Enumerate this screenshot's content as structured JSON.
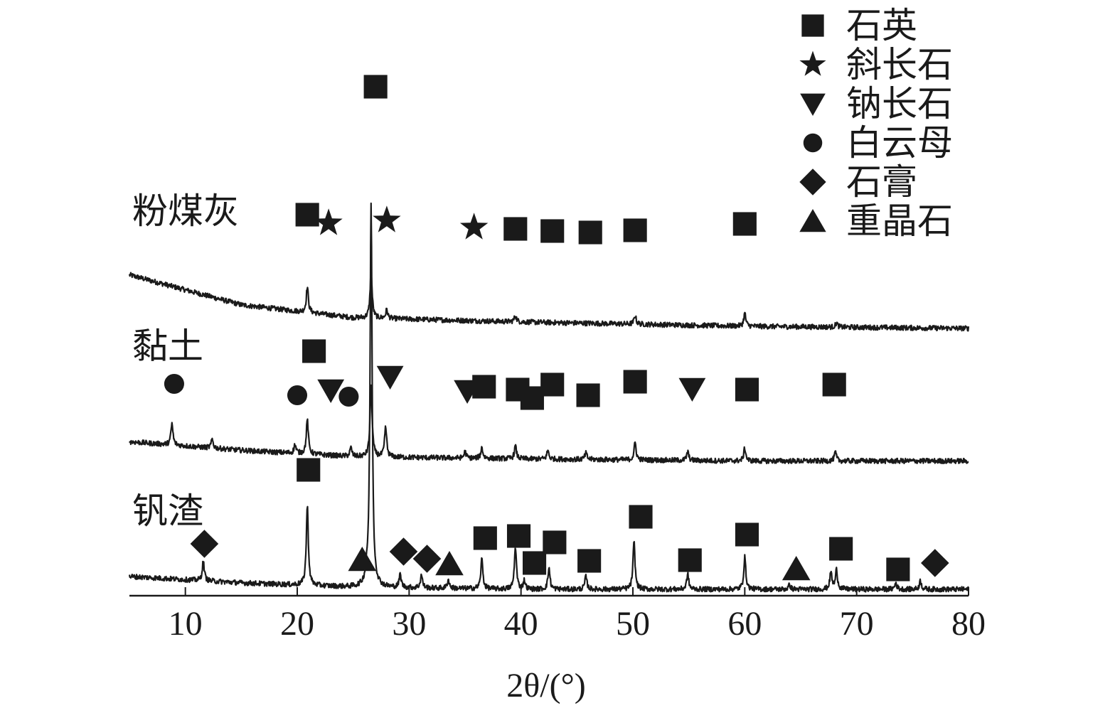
{
  "chart_data": {
    "type": "line",
    "xlabel": "2θ/(°)",
    "xlim": [
      5,
      80
    ],
    "x_ticks": [
      10,
      20,
      30,
      40,
      50,
      60,
      70,
      80
    ],
    "y_ticks_shown": false,
    "grid": false,
    "legend_position": "top-right",
    "phases": [
      {
        "id": "quartz",
        "label": "石英",
        "shape": "square"
      },
      {
        "id": "plagioclase",
        "label": "斜长石",
        "shape": "star"
      },
      {
        "id": "albite",
        "label": "钠长石",
        "shape": "triangle-down"
      },
      {
        "id": "muscovite",
        "label": "白云母",
        "shape": "circle"
      },
      {
        "id": "gypsum",
        "label": "石膏",
        "shape": "diamond"
      },
      {
        "id": "barite",
        "label": "重晶石",
        "shape": "triangle-up"
      }
    ],
    "series": [
      {
        "name": "粉煤灰",
        "baseline": [
          [
            5,
            7.4
          ],
          [
            15,
            6.7
          ],
          [
            25,
            6.4
          ],
          [
            40,
            6.3
          ],
          [
            60,
            6.2
          ],
          [
            80,
            6.15
          ]
        ],
        "peaks": [
          [
            20.9,
            0.6
          ],
          [
            26.6,
            1.1
          ],
          [
            28.0,
            0.2
          ],
          [
            39.5,
            0.15
          ],
          [
            50.2,
            0.2
          ],
          [
            60.0,
            0.3
          ],
          [
            68.2,
            0.1
          ]
        ],
        "annotations": [
          {
            "phase": "quartz",
            "x": 20.9
          },
          {
            "phase": "plagioclase",
            "x": 22.8
          },
          {
            "phase": "plagioclase",
            "x": 28.0
          },
          {
            "phase": "plagioclase",
            "x": 35.8
          },
          {
            "phase": "quartz",
            "x": 39.5
          },
          {
            "phase": "quartz",
            "x": 42.8
          },
          {
            "phase": "quartz",
            "x": 46.2
          },
          {
            "phase": "quartz",
            "x": 50.2
          },
          {
            "phase": "quartz",
            "x": 60.0
          }
        ]
      },
      {
        "name": "黏土",
        "baseline": [
          [
            5,
            3.5
          ],
          [
            15,
            3.3
          ],
          [
            25,
            3.15
          ],
          [
            40,
            3.1
          ],
          [
            60,
            3.05
          ],
          [
            80,
            3.05
          ]
        ],
        "peaks": [
          [
            8.8,
            0.5
          ],
          [
            12.4,
            0.2
          ],
          [
            19.8,
            0.2
          ],
          [
            20.9,
            0.8
          ],
          [
            24.8,
            0.2
          ],
          [
            26.6,
            1.7
          ],
          [
            27.9,
            0.7
          ],
          [
            35.0,
            0.15
          ],
          [
            36.5,
            0.25
          ],
          [
            39.5,
            0.3
          ],
          [
            42.4,
            0.2
          ],
          [
            45.8,
            0.15
          ],
          [
            50.2,
            0.4
          ],
          [
            54.9,
            0.2
          ],
          [
            60.0,
            0.3
          ],
          [
            68.1,
            0.2
          ]
        ],
        "annotations": [
          {
            "phase": "muscovite",
            "x": 9.0
          },
          {
            "phase": "muscovite",
            "x": 20.0
          },
          {
            "phase": "quartz",
            "x": 21.5
          },
          {
            "phase": "albite",
            "x": 23.0
          },
          {
            "phase": "muscovite",
            "x": 24.6
          },
          {
            "phase": "albite",
            "x": 28.3
          },
          {
            "phase": "albite",
            "x": 35.2
          },
          {
            "phase": "quartz",
            "x": 36.7
          },
          {
            "phase": "quartz",
            "x": 39.7
          },
          {
            "phase": "quartz",
            "x": 41.0
          },
          {
            "phase": "quartz",
            "x": 42.8
          },
          {
            "phase": "quartz",
            "x": 46.0
          },
          {
            "phase": "quartz",
            "x": 50.2
          },
          {
            "phase": "albite",
            "x": 55.3
          },
          {
            "phase": "quartz",
            "x": 60.2
          },
          {
            "phase": "quartz",
            "x": 68.0
          }
        ]
      },
      {
        "name": "钒渣",
        "baseline": [
          [
            5,
            0.35
          ],
          [
            15,
            0.2
          ],
          [
            25,
            0.1
          ],
          [
            40,
            0.05
          ],
          [
            60,
            0.05
          ],
          [
            80,
            0.05
          ]
        ],
        "peaks": [
          [
            11.6,
            0.45
          ],
          [
            20.9,
            1.85
          ],
          [
            26.2,
            0.2
          ],
          [
            26.6,
            9.0
          ],
          [
            29.2,
            0.3
          ],
          [
            31.1,
            0.3
          ],
          [
            33.5,
            0.2
          ],
          [
            36.5,
            0.7
          ],
          [
            39.5,
            1.0
          ],
          [
            40.3,
            0.2
          ],
          [
            42.5,
            0.5
          ],
          [
            45.8,
            0.3
          ],
          [
            50.1,
            1.1
          ],
          [
            54.9,
            0.35
          ],
          [
            60.0,
            0.75
          ],
          [
            64.0,
            0.1
          ],
          [
            67.7,
            0.4
          ],
          [
            68.2,
            0.45
          ],
          [
            73.5,
            0.15
          ],
          [
            75.7,
            0.2
          ]
        ],
        "annotations": [
          {
            "phase": "gypsum",
            "x": 11.7
          },
          {
            "phase": "quartz",
            "x": 21.0
          },
          {
            "phase": "barite",
            "x": 25.8
          },
          {
            "phase": "quartz",
            "x": 27.0
          },
          {
            "phase": "gypsum",
            "x": 29.5
          },
          {
            "phase": "gypsum",
            "x": 31.6
          },
          {
            "phase": "barite",
            "x": 33.6
          },
          {
            "phase": "quartz",
            "x": 36.8
          },
          {
            "phase": "quartz",
            "x": 39.8
          },
          {
            "phase": "quartz",
            "x": 41.2
          },
          {
            "phase": "quartz",
            "x": 43.0
          },
          {
            "phase": "quartz",
            "x": 46.1
          },
          {
            "phase": "quartz",
            "x": 50.7
          },
          {
            "phase": "quartz",
            "x": 55.1
          },
          {
            "phase": "quartz",
            "x": 60.2
          },
          {
            "phase": "barite",
            "x": 64.6
          },
          {
            "phase": "quartz",
            "x": 68.6
          },
          {
            "phase": "quartz",
            "x": 73.7
          },
          {
            "phase": "gypsum",
            "x": 77.0
          }
        ]
      }
    ]
  }
}
